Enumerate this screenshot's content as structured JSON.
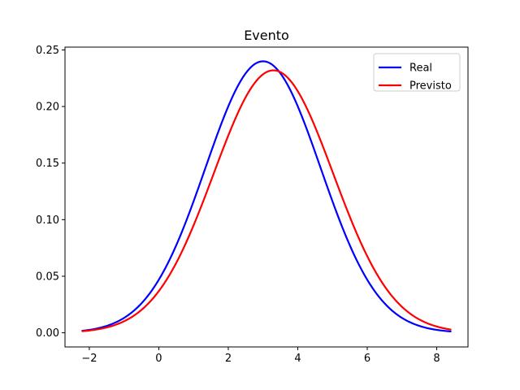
{
  "chart_data": {
    "type": "line",
    "title": "Evento",
    "xlabel": "",
    "ylabel": "",
    "xlim": [
      -2.7,
      8.9
    ],
    "ylim": [
      -0.0125,
      0.2525
    ],
    "xticks": [
      -2,
      0,
      2,
      4,
      6,
      8
    ],
    "xtick_labels": [
      "−2",
      "0",
      "2",
      "4",
      "6",
      "8"
    ],
    "yticks": [
      0.0,
      0.05,
      0.1,
      0.15,
      0.2,
      0.25
    ],
    "ytick_labels": [
      "0.00",
      "0.05",
      "0.10",
      "0.15",
      "0.20",
      "0.25"
    ],
    "grid": false,
    "legend_position": "top-right",
    "x_range": [
      -2.2,
      8.4
    ],
    "series": [
      {
        "name": "Real",
        "color": "#0000ff",
        "distribution": "normal",
        "mean": 3.0,
        "sd": 1.66,
        "peak": 0.24
      },
      {
        "name": "Previsto",
        "color": "#ff0000",
        "distribution": "normal",
        "mean": 3.3,
        "sd": 1.72,
        "peak": 0.232
      }
    ]
  }
}
